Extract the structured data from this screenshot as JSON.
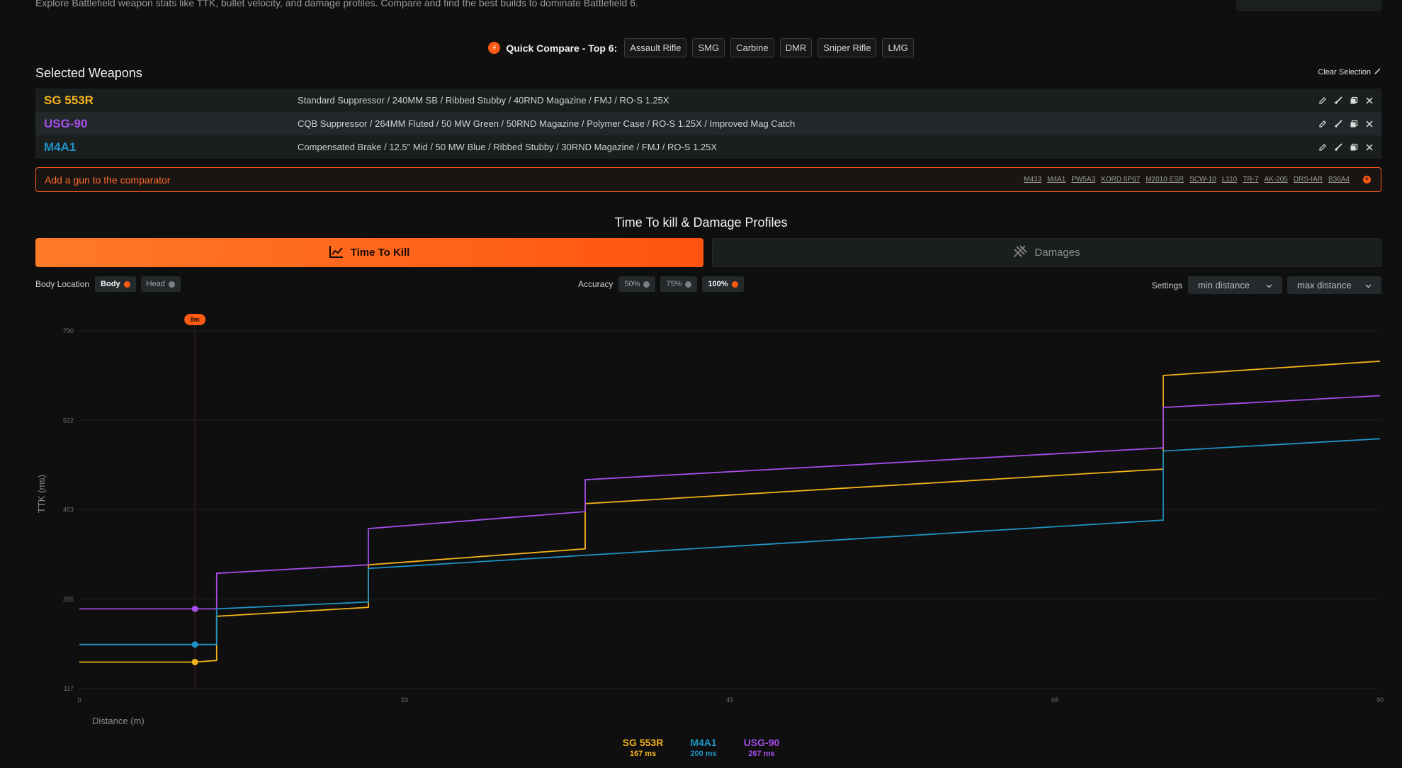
{
  "intro": "Explore Battlefield weapon stats like TTK, bullet velocity, and damage profiles. Compare and find the best builds to dominate Battlefield 6.",
  "quick_compare": {
    "label": "Quick Compare - Top 6:",
    "chips": [
      "Assault Rifle",
      "SMG",
      "Carbine",
      "DMR",
      "Sniper Rifle",
      "LMG"
    ]
  },
  "selected": {
    "title": "Selected Weapons",
    "clear_label": "Clear Selection",
    "weapons": [
      {
        "name": "SG 553R",
        "color": "#f5b41b",
        "build": "Standard Suppressor / 240MM SB / Ribbed Stubby / 40RND Magazine / FMJ / RO-S 1.25X"
      },
      {
        "name": "USG-90",
        "color": "#a64dea",
        "build": "CQB Suppressor / 264MM Fluted / 50 MW Green / 50RND Magazine / Polymer Case / RO-S 1.25X / Improved Mag Catch"
      },
      {
        "name": "M4A1",
        "color": "#1f93c4",
        "build": "Compensated Brake / 12.5\" Mid / 50 MW Blue / Ribbed Stubby / 30RND Magazine / FMJ / RO-S 1.25X"
      }
    ]
  },
  "add_gun": {
    "label": "Add a gun to the comparator",
    "suggestions": [
      "M433",
      "M4A1",
      "PW5A3",
      "KORD 6P67",
      "M2010 ESR",
      "SCW-10",
      "L110",
      "TR-7",
      "AK-205",
      "DRS-IAR",
      "B36A4"
    ]
  },
  "section_title": "Time To kill & Damage Profiles",
  "tabs": {
    "ttk": "Time To Kill",
    "damages": "Damages"
  },
  "filters": {
    "body_location_label": "Body Location",
    "body": "Body",
    "head": "Head",
    "accuracy_label": "Accuracy",
    "accuracy": [
      "50%",
      "75%",
      "100%"
    ],
    "settings_label": "Settings",
    "min_distance": "min distance",
    "max_distance": "max distance"
  },
  "chart_data": {
    "type": "line",
    "xlabel": "Distance (m)",
    "ylabel": "TTK (ms)",
    "xlim": [
      0,
      90
    ],
    "ylim": [
      117,
      790
    ],
    "x_ticks": [
      "0",
      "23",
      "45",
      "68",
      "90"
    ],
    "y_ticks": [
      "790",
      "622",
      "453",
      "285",
      "117"
    ],
    "marker": {
      "x": 8,
      "label": "8m"
    },
    "series": [
      {
        "name": "SG 553R",
        "color": "#f5b41b",
        "points": [
          [
            0,
            167
          ],
          [
            8,
            167
          ],
          [
            9.5,
            170
          ],
          [
            9.5,
            253
          ],
          [
            20,
            270
          ],
          [
            20,
            350
          ],
          [
            35,
            380
          ],
          [
            35,
            465
          ],
          [
            75,
            530
          ],
          [
            75,
            706
          ],
          [
            90,
            733
          ]
        ]
      },
      {
        "name": "USG-90",
        "color": "#a64dea",
        "points": [
          [
            0,
            267
          ],
          [
            8,
            267
          ],
          [
            9.5,
            267
          ],
          [
            9.5,
            334
          ],
          [
            20,
            350
          ],
          [
            20,
            418
          ],
          [
            35,
            450
          ],
          [
            35,
            510
          ],
          [
            75,
            570
          ],
          [
            75,
            646
          ],
          [
            90,
            668
          ]
        ]
      },
      {
        "name": "M4A1",
        "color": "#1f93c4",
        "points": [
          [
            0,
            200
          ],
          [
            8,
            200
          ],
          [
            9.5,
            200
          ],
          [
            9.5,
            267
          ],
          [
            20,
            280
          ],
          [
            20,
            343
          ],
          [
            75,
            434
          ],
          [
            75,
            564
          ],
          [
            90,
            587
          ]
        ]
      }
    ],
    "legend": [
      {
        "name": "SG 553R",
        "value": "167 ms",
        "color": "#f5b41b"
      },
      {
        "name": "M4A1",
        "value": "200 ms",
        "color": "#1f93c4"
      },
      {
        "name": "USG-90",
        "value": "267 ms",
        "color": "#a64dea"
      }
    ]
  }
}
